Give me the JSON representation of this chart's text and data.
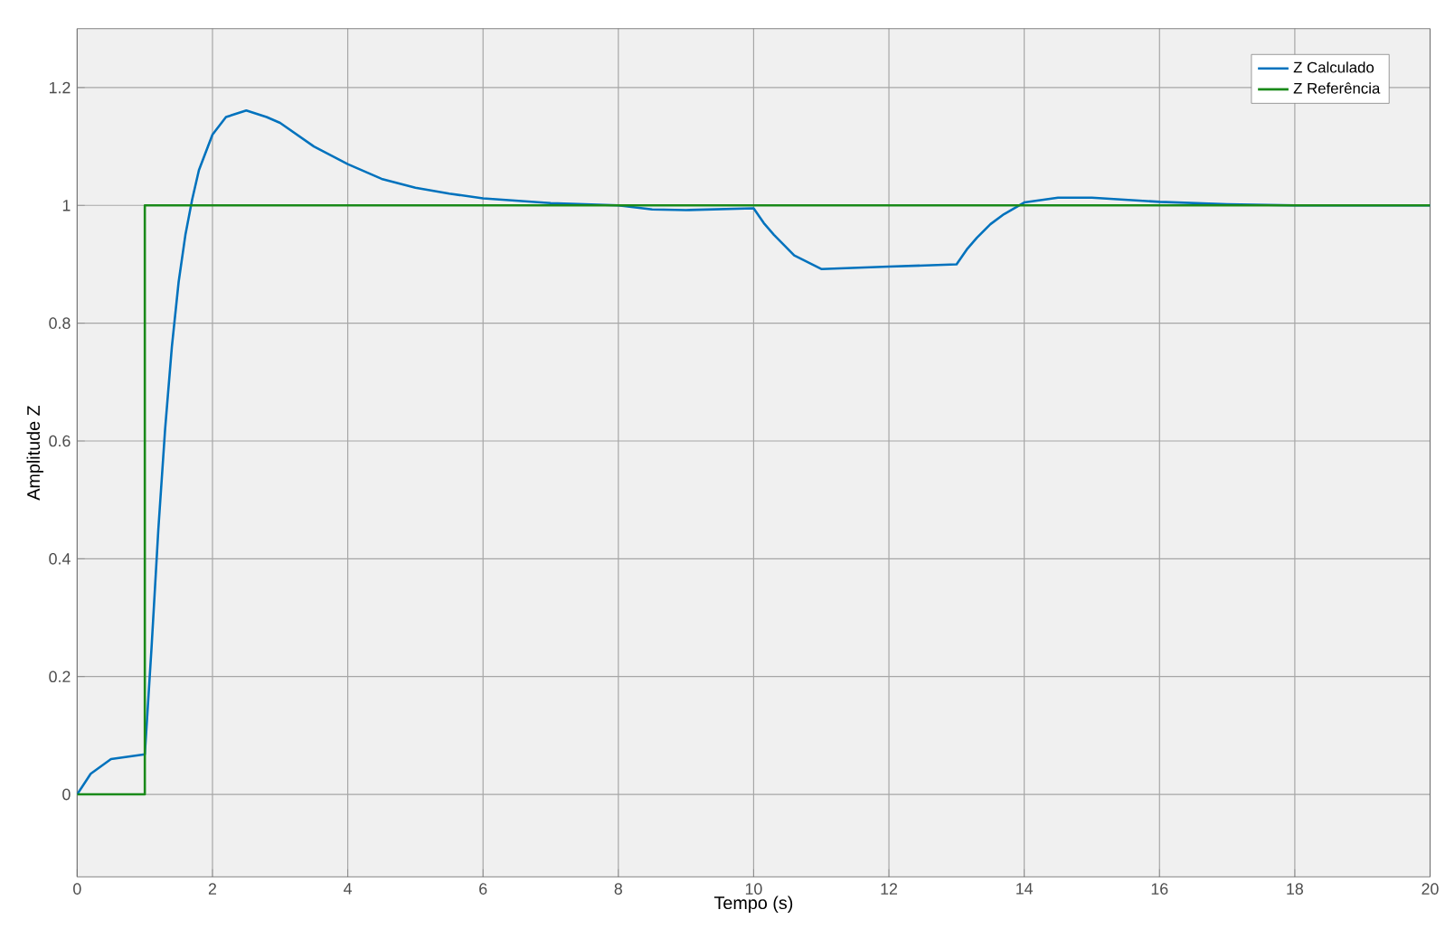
{
  "chart_data": {
    "type": "line",
    "xlabel": "Tempo (s)",
    "ylabel": "Amplitude Z",
    "xlim": [
      0,
      20
    ],
    "ylim": [
      -0.14,
      1.3
    ],
    "xticks": [
      0,
      2,
      4,
      6,
      8,
      10,
      12,
      14,
      16,
      18,
      20
    ],
    "yticks": [
      0,
      0.2,
      0.4,
      0.6,
      0.8,
      1,
      1.2
    ],
    "grid": true,
    "legend": "top right",
    "line_style": "solid",
    "marker": "none",
    "series": [
      {
        "name": "Z Calculado",
        "color": "#0072bd",
        "x": [
          0,
          0.2,
          0.5,
          1,
          1.1,
          1.2,
          1.3,
          1.4,
          1.5,
          1.6,
          1.7,
          1.8,
          2,
          2.2,
          2.5,
          2.8,
          3,
          3.5,
          4,
          4.5,
          5,
          5.5,
          6,
          7,
          8,
          8.5,
          9,
          10,
          10.15,
          10.3,
          10.6,
          11,
          12,
          13,
          13.15,
          13.3,
          13.5,
          13.7,
          14,
          14.5,
          15,
          16,
          17,
          18,
          20
        ],
        "values": [
          0,
          0.035,
          0.06,
          0.068,
          0.25,
          0.45,
          0.62,
          0.76,
          0.87,
          0.95,
          1.01,
          1.06,
          1.12,
          1.15,
          1.161,
          1.15,
          1.14,
          1.1,
          1.07,
          1.045,
          1.03,
          1.02,
          1.012,
          1.004,
          1.0,
          0.993,
          0.992,
          0.995,
          0.97,
          0.95,
          0.915,
          0.892,
          0.896,
          0.9,
          0.925,
          0.945,
          0.968,
          0.985,
          1.005,
          1.013,
          1.013,
          1.006,
          1.002,
          1.0,
          1.0
        ]
      },
      {
        "name": "Z Referência",
        "color": "#1a8a1a",
        "x": [
          0,
          1,
          1,
          20
        ],
        "values": [
          0,
          0,
          1,
          1
        ]
      }
    ]
  }
}
